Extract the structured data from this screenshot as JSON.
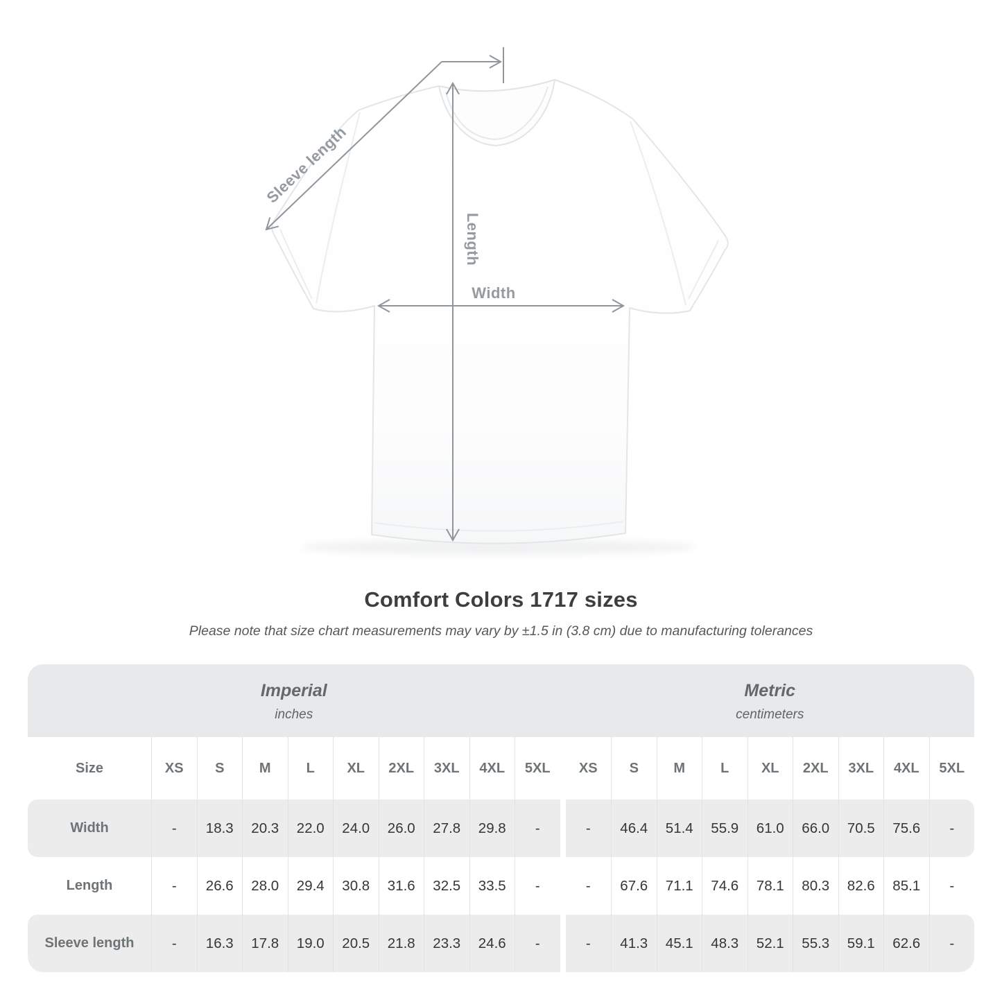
{
  "title": "Comfort Colors 1717 sizes",
  "subtitle": "Please note that size chart measurements may vary by ±1.5 in (3.8 cm) due to manufacturing tolerances",
  "diagram": {
    "labels": {
      "sleeve": "Sleeve length",
      "length": "Length",
      "width": "Width"
    },
    "annotation_color": "#8e959b"
  },
  "colors": {
    "band_background": "#e8e9ea",
    "row_stripe": "#ececec",
    "header_text": "#6d7377",
    "value_text": "#343637",
    "annotation_gray": "#8e959b"
  },
  "table": {
    "size_header": "Size",
    "sizes": [
      "XS",
      "S",
      "M",
      "L",
      "XL",
      "2XL",
      "3XL",
      "4XL",
      "5XL"
    ],
    "sections": [
      {
        "label": "Imperial",
        "unit": "inches"
      },
      {
        "label": "Metric",
        "unit": "centimeters"
      }
    ],
    "rows": [
      {
        "label": "Width",
        "imperial": [
          "-",
          "18.3",
          "20.3",
          "22.0",
          "24.0",
          "26.0",
          "27.8",
          "29.8",
          "-"
        ],
        "metric": [
          "-",
          "46.4",
          "51.4",
          "55.9",
          "61.0",
          "66.0",
          "70.5",
          "75.6",
          "-"
        ]
      },
      {
        "label": "Length",
        "imperial": [
          "-",
          "26.6",
          "28.0",
          "29.4",
          "30.8",
          "31.6",
          "32.5",
          "33.5",
          "-"
        ],
        "metric": [
          "-",
          "67.6",
          "71.1",
          "74.6",
          "78.1",
          "80.3",
          "82.6",
          "85.1",
          "-"
        ]
      },
      {
        "label": "Sleeve length",
        "imperial": [
          "-",
          "16.3",
          "17.8",
          "19.0",
          "20.5",
          "21.8",
          "23.3",
          "24.6",
          "-"
        ],
        "metric": [
          "-",
          "41.3",
          "45.1",
          "48.3",
          "52.1",
          "55.3",
          "59.1",
          "62.6",
          "-"
        ]
      }
    ]
  },
  "chart_data": {
    "type": "table",
    "title": "Comfort Colors 1717 sizes",
    "note": "Please note that size chart measurements may vary by ±1.5 in (3.8 cm) due to manufacturing tolerances",
    "sections": [
      {
        "name": "Imperial",
        "unit": "inches",
        "columns": [
          "XS",
          "S",
          "M",
          "L",
          "XL",
          "2XL",
          "3XL",
          "4XL",
          "5XL"
        ],
        "rows": [
          {
            "label": "Width",
            "values": [
              null,
              18.3,
              20.3,
              22.0,
              24.0,
              26.0,
              27.8,
              29.8,
              null
            ]
          },
          {
            "label": "Length",
            "values": [
              null,
              26.6,
              28.0,
              29.4,
              30.8,
              31.6,
              32.5,
              33.5,
              null
            ]
          },
          {
            "label": "Sleeve length",
            "values": [
              null,
              16.3,
              17.8,
              19.0,
              20.5,
              21.8,
              23.3,
              24.6,
              null
            ]
          }
        ]
      },
      {
        "name": "Metric",
        "unit": "centimeters",
        "columns": [
          "XS",
          "S",
          "M",
          "L",
          "XL",
          "2XL",
          "3XL",
          "4XL",
          "5XL"
        ],
        "rows": [
          {
            "label": "Width",
            "values": [
              null,
              46.4,
              51.4,
              55.9,
              61.0,
              66.0,
              70.5,
              75.6,
              null
            ]
          },
          {
            "label": "Length",
            "values": [
              null,
              67.6,
              71.1,
              74.6,
              78.1,
              80.3,
              82.6,
              85.1,
              null
            ]
          },
          {
            "label": "Sleeve length",
            "values": [
              null,
              41.3,
              45.1,
              48.3,
              52.1,
              55.3,
              59.1,
              62.6,
              null
            ]
          }
        ]
      }
    ]
  }
}
